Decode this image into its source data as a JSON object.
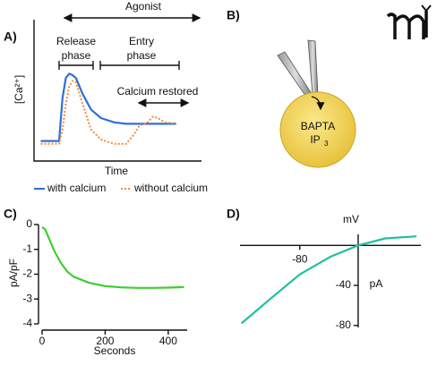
{
  "chart_data": [
    {
      "type": "line",
      "panel_label": "A)",
      "xlabel": "Time",
      "ylabel": "[Ca²⁺]",
      "annotations": [
        "Agonist",
        "Release",
        "phase",
        "Entry",
        "phase",
        "Calcium restored"
      ],
      "xlim": [
        0,
        100
      ],
      "ylim": [
        0,
        100
      ],
      "x": [
        4,
        15,
        17,
        19,
        21,
        23,
        25,
        29,
        34,
        40,
        48,
        55,
        60,
        63,
        67,
        71,
        74,
        78,
        85
      ],
      "series": [
        {
          "name": "with calcium",
          "color": "#2f6fd6",
          "dash": false,
          "values": [
            14,
            14,
            44,
            58,
            61,
            60,
            58,
            47,
            36,
            30,
            27,
            26,
            26,
            26,
            26,
            26,
            26,
            26,
            26
          ]
        },
        {
          "name": "without calcium",
          "color": "#f08a3c",
          "dash": true,
          "values": [
            12,
            12,
            22,
            40,
            52,
            56,
            55,
            40,
            22,
            15,
            12,
            12,
            19,
            25,
            26,
            31,
            30,
            27,
            26
          ]
        }
      ]
    },
    {
      "type": "line",
      "panel_label": "C)",
      "xlabel": "Seconds",
      "ylabel": "pA/pF",
      "xlim": [
        0,
        460
      ],
      "ylim": [
        -4,
        0
      ],
      "xticks": [
        0,
        200,
        400
      ],
      "yticks": [
        0,
        -1,
        -2,
        -3,
        -4
      ],
      "x": [
        0,
        10,
        20,
        40,
        60,
        80,
        100,
        150,
        200,
        250,
        300,
        350,
        400,
        450
      ],
      "series": [
        {
          "name": null,
          "color": "#3ccf2f",
          "dash": false,
          "values": [
            -0.1,
            -0.2,
            -0.5,
            -1.1,
            -1.55,
            -1.9,
            -2.1,
            -2.35,
            -2.48,
            -2.53,
            -2.55,
            -2.55,
            -2.54,
            -2.52
          ]
        }
      ]
    },
    {
      "type": "line",
      "panel_label": "D)",
      "xlabel": "mV",
      "ylabel": "pA",
      "xlim": [
        -162,
        86
      ],
      "ylim": [
        -82,
        11
      ],
      "xticks": [
        -80
      ],
      "yticks": [
        -40,
        -80
      ],
      "x": [
        -160,
        -123,
        -80,
        -37,
        0,
        37,
        80
      ],
      "series": [
        {
          "name": null,
          "color": "#1fbfa0",
          "dash": false,
          "values": [
            -78,
            -55,
            -29,
            -11,
            0,
            7,
            9
          ]
        }
      ]
    }
  ],
  "diagram": {
    "panel_label": "B)",
    "labels": [
      "BAPTA",
      "IP",
      "3"
    ]
  }
}
